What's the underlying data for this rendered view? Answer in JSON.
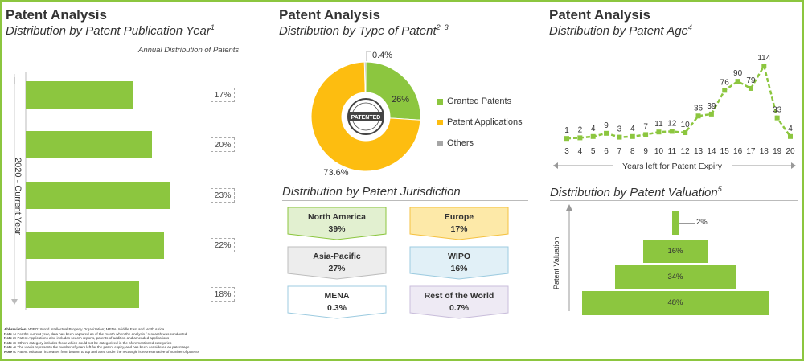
{
  "panel1": {
    "title": "Patent Analysis",
    "subtitle": "Distribution by Patent Publication Year",
    "subtitle_sup": "1",
    "chart_caption": "Annual Distribution of Patents",
    "axis_label": "2020 - Current Year"
  },
  "panel2": {
    "title": "Patent Analysis",
    "subtitle": "Distribution by Type of Patent",
    "subtitle_sup": "2, 3",
    "stamp_text": "PATENTED"
  },
  "panel3": {
    "title": "Patent Analysis",
    "subtitle": "Distribution by Patent Age",
    "subtitle_sup": "4",
    "xlabel": "Years left for Patent Expiry"
  },
  "panel4": {
    "subtitle": "Distribution by Patent Jurisdiction",
    "regions": [
      {
        "name": "North America",
        "value": "39%"
      },
      {
        "name": "Europe",
        "value": "17%"
      },
      {
        "name": "Asia-Pacific",
        "value": "27%"
      },
      {
        "name": "WIPO",
        "value": "16%"
      },
      {
        "name": "MENA",
        "value": "0.3%"
      },
      {
        "name": "Rest of the World",
        "value": "0.7%"
      }
    ]
  },
  "panel5": {
    "subtitle": "Distribution by Patent Valuation",
    "subtitle_sup": "5",
    "ylabel": "Patent Valuation"
  },
  "notes": {
    "lines": [
      {
        "bold": "Abbreviation:",
        "text": " WIPO: World Intellectual Property Organization; MENA: Middle East and North Africa"
      },
      {
        "bold": "Note 1:",
        "text": " For the current year, data has been captured as of the month when the analysis / research was conducted"
      },
      {
        "bold": "Note 2:",
        "text": " Patent Applications also includes search reports, patents of addition and amended applications"
      },
      {
        "bold": "Note 3:",
        "text": " Others category includes those which could not be categorized in the aforementioned categories"
      },
      {
        "bold": "Note 4:",
        "text": " The x-axis represents the number of years left for the patent expiry, and has been considered as patent age"
      },
      {
        "bold": "Note 5:",
        "text": " Patent valuation increases from bottom to top and area under the rectangle is representative of number of patents"
      }
    ]
  },
  "colors": {
    "green": "#8cc63f",
    "yellow": "#fdbd10",
    "gray": "#a6a6a6"
  },
  "chart_data": [
    {
      "type": "bar",
      "orientation": "horizontal",
      "title": "Distribution by Patent Publication Year",
      "categories": [
        "",
        "",
        "",
        "",
        ""
      ],
      "values": [
        17,
        20,
        23,
        22,
        18
      ],
      "labels": [
        "17%",
        "20%",
        "23%",
        "22%",
        "18%"
      ],
      "unit": "%",
      "xlim": [
        0,
        25
      ]
    },
    {
      "type": "pie",
      "style": "donut",
      "title": "Distribution by Type of Patent",
      "slices": [
        {
          "name": "Granted Patents",
          "value": 26,
          "label": "26%",
          "color": "#8cc63f"
        },
        {
          "name": "Patent Applications",
          "value": 73.6,
          "label": "73.6%",
          "color": "#fdbd10"
        },
        {
          "name": "Others",
          "value": 0.4,
          "label": "0.4%",
          "color": "#a6a6a6"
        }
      ],
      "legend": "right"
    },
    {
      "type": "line",
      "title": "Distribution by Patent Age",
      "xlabel": "Years left for Patent Expiry",
      "x": [
        3,
        4,
        5,
        6,
        7,
        8,
        9,
        10,
        11,
        12,
        13,
        14,
        15,
        16,
        17,
        18,
        19,
        20
      ],
      "values": [
        1,
        2,
        4,
        9,
        3,
        4,
        7,
        11,
        12,
        10,
        36,
        39,
        76,
        90,
        79,
        114,
        33,
        4
      ],
      "ylim": [
        0,
        120
      ],
      "line_style": "dashed"
    },
    {
      "type": "bar",
      "style": "pyramid",
      "title": "Distribution by Patent Valuation",
      "ylabel": "Patent Valuation",
      "values": [
        2,
        16,
        34,
        48
      ],
      "labels": [
        "2%",
        "16%",
        "34%",
        "48%"
      ],
      "order": "top-to-bottom"
    }
  ]
}
